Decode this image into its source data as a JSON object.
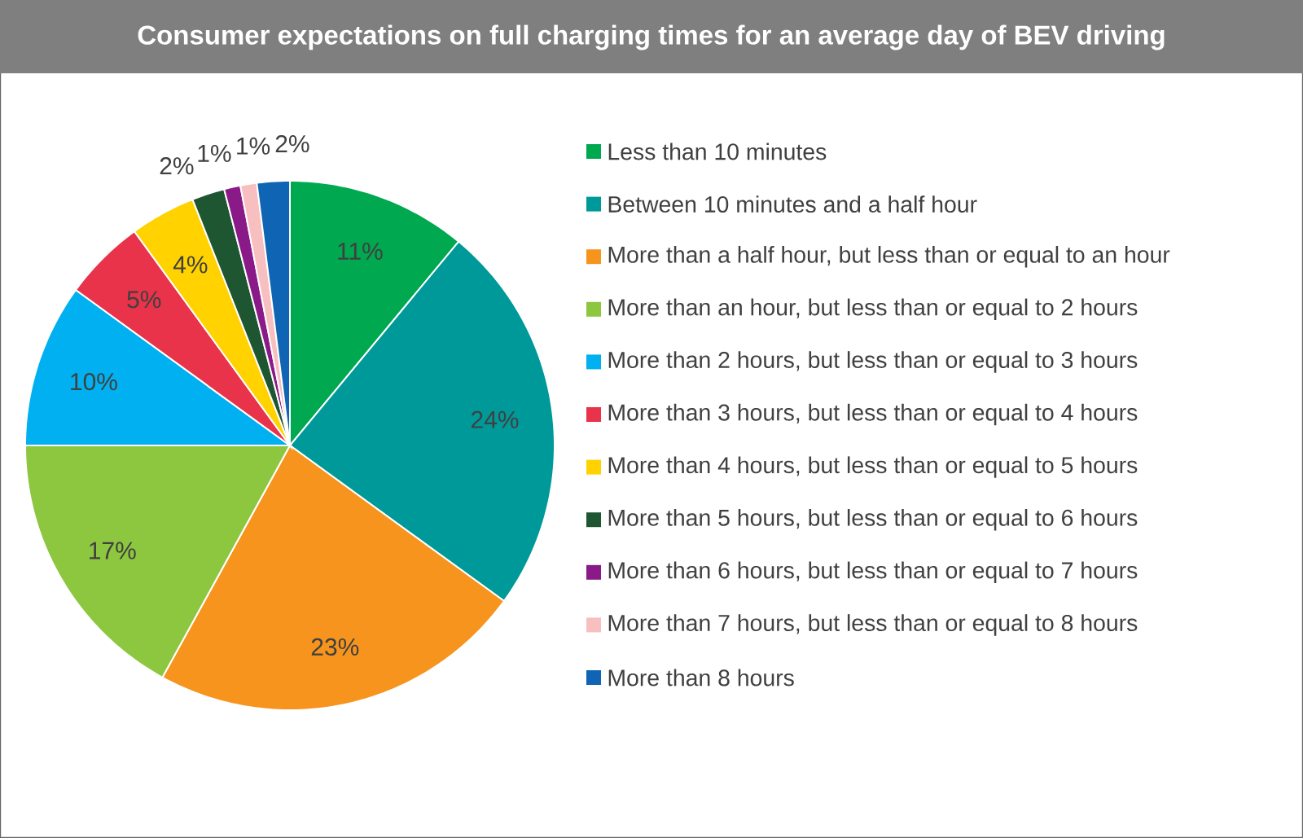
{
  "chart_data": {
    "type": "pie",
    "title": "Consumer expectations on full charging times for an average day of BEV driving",
    "categories": [
      "Less than 10 minutes",
      "Between 10 minutes and a half hour",
      "More than a half hour, but less than or equal to an hour",
      "More than an hour, but less than or equal to 2 hours",
      "More than 2 hours, but less than or equal to 3 hours",
      "More than 3 hours, but less than or equal to 4 hours",
      "More than 4 hours, but less than or equal to 5 hours",
      "More than 5 hours, but less than or equal to 6 hours",
      "More than 6 hours, but less than or equal to 7 hours",
      "More than 7 hours, but less than or equal to 8 hours",
      "More than 8 hours"
    ],
    "values": [
      11,
      24,
      23,
      17,
      10,
      5,
      4,
      2,
      1,
      1,
      2
    ],
    "value_labels": [
      "11%",
      "24%",
      "23%",
      "17%",
      "10%",
      "5%",
      "4%",
      "2%",
      "1%",
      "1%",
      "2%"
    ],
    "colors": [
      "#00a84f",
      "#009999",
      "#f7941d",
      "#8dc63f",
      "#00b0f0",
      "#e8334a",
      "#ffd200",
      "#1e5631",
      "#8b1a89",
      "#f7bfbf",
      "#0f64b4"
    ],
    "legend": "right"
  }
}
